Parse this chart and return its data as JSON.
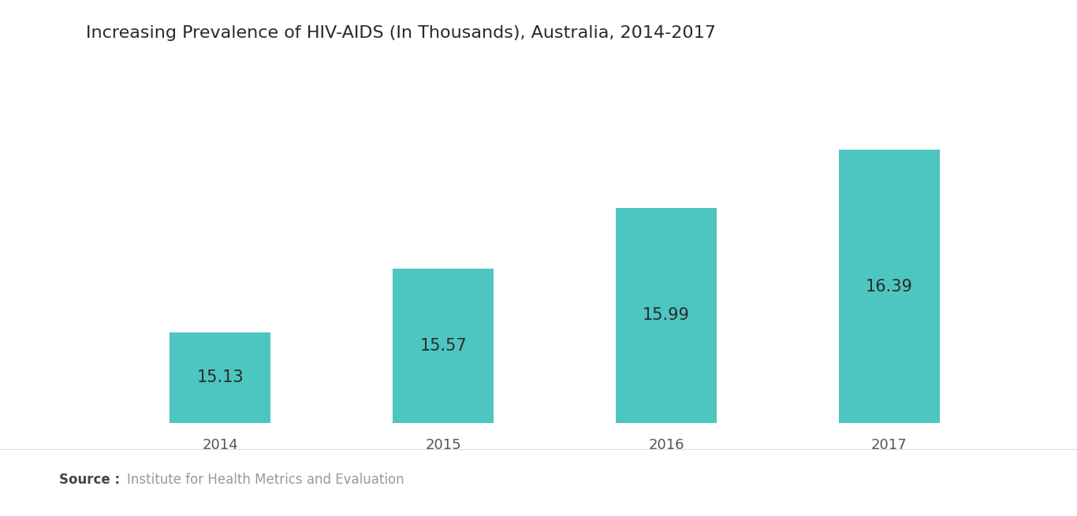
{
  "title": "Increasing Prevalence of HIV-AIDS (In Thousands), Australia, 2014-2017",
  "categories": [
    "2014",
    "2015",
    "2016",
    "2017"
  ],
  "values": [
    15.13,
    15.57,
    15.99,
    16.39
  ],
  "bar_color": "#4DC5C0",
  "label_color": "#2a2a2a",
  "label_fontsize": 15,
  "title_fontsize": 16,
  "xlabel_fontsize": 13,
  "bar_width": 0.45,
  "ymin": 14.5,
  "ymax": 17.0,
  "bar_bottom": 14.5,
  "background_color": "#ffffff",
  "source_bold": "Source :",
  "source_text": "Institute for Health Metrics and Evaluation",
  "source_color": "#999999",
  "source_bold_color": "#444444",
  "xlim_left": -0.6,
  "xlim_right": 3.6
}
